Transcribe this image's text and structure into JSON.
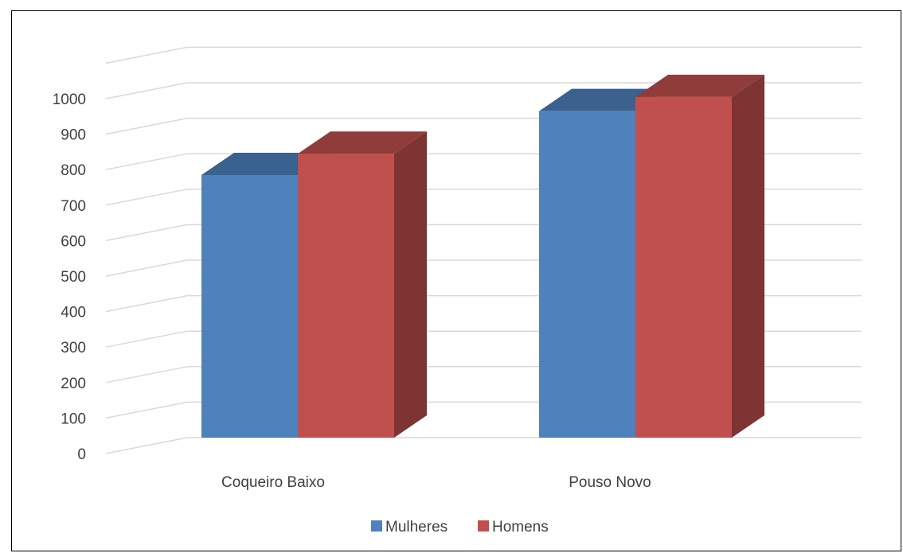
{
  "chart_data": {
    "type": "bar",
    "style": "3d-clustered-column",
    "categories": [
      "Coqueiro Baixo",
      "Pouso Novo"
    ],
    "series": [
      {
        "name": "Mulheres",
        "color": "#4F81BD",
        "values": [
          740,
          920
        ]
      },
      {
        "name": "Homens",
        "color": "#C0504D",
        "values": [
          800,
          960
        ]
      }
    ],
    "y_ticks": [
      "0",
      "100",
      "200",
      "300",
      "400",
      "500",
      "600",
      "700",
      "800",
      "900",
      "1000"
    ],
    "ylim": [
      0,
      1000
    ],
    "grid": true,
    "legend_position": "bottom",
    "title": "",
    "xlabel": "",
    "ylabel": ""
  }
}
